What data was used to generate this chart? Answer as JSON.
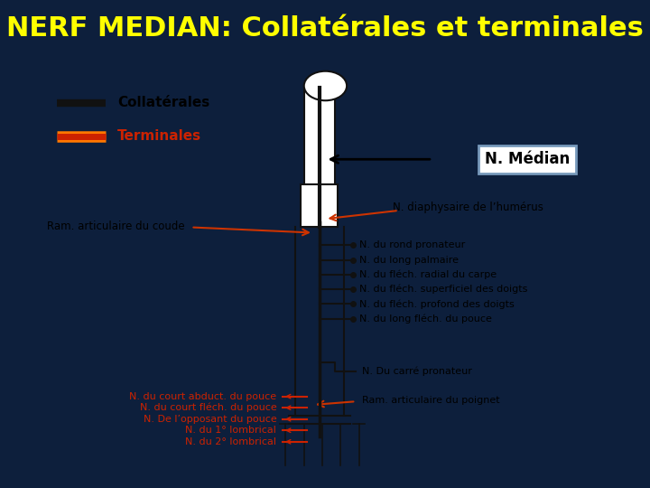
{
  "title": "NERF MEDIAN: Collatérales et terminales",
  "title_color": "#FFFF00",
  "title_bg": "#000000",
  "title_fontsize": 22,
  "bg_color": "#0d1f3c",
  "panel_bg": "#ffffff",
  "panel_border": "#cccccc",
  "legend_collatérales_color": "#111111",
  "legend_terminales_color": "#cc2200",
  "legend_terminales_outline": "#ff6600",
  "nerve_color": "#111111",
  "arrow_color": "#cc3300",
  "n_median_box_color": "#7799bb",
  "labels": {
    "collatérales": "Collatérales",
    "terminales": "Terminales",
    "n_median": "N. Médian",
    "diaphysaire": "N. diaphysaire de l’humérus",
    "ram_coude": "Ram. articulaire du coude",
    "rond_pronateur": "N. du rond pronateur",
    "long_palmaire": "N. du long palmaire",
    "flech_radial": "N. du fléch. radial du carpe",
    "flech_superficiel": "N. du fléch. superficiel des doigts",
    "flech_profond": "N. du fléch. profond des doigts",
    "long_flech": "N. du long fléch. du pouce",
    "carre_pronateur": "N. Du carré pronateur",
    "ram_poignet": "Ram. articulaire du poignet",
    "court_abduct": "N. du court abduct. du pouce",
    "court_flech": "N. du court fléch. du pouce",
    "opposant": "N. De l’opposant du pouce",
    "lombrical1": "N. du 1° lombrical",
    "lombrical2": "N. du 2° lombrical"
  }
}
